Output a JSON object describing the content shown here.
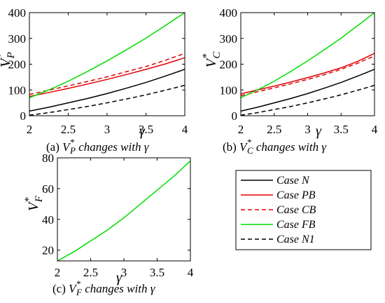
{
  "chart_data": [
    {
      "type": "line",
      "panel": "a",
      "caption_prefix": "(a) ",
      "caption_var": "V",
      "caption_sub": "P",
      "caption_sup": "*",
      "caption_rest": " changes with γ",
      "ylabel_main": "V",
      "ylabel_sub": "P",
      "ylabel_sup": "*",
      "xlabel": "γ",
      "xlim": [
        2,
        4
      ],
      "ylim": [
        0,
        400
      ],
      "xticks": [
        2,
        2.5,
        3,
        3.5,
        4
      ],
      "xtick_labels": [
        "2",
        "2.5",
        "3",
        "3.5",
        "4"
      ],
      "yticks": [
        0,
        100,
        200,
        300,
        400
      ],
      "ytick_labels": [
        "0",
        "100",
        "200",
        "300",
        "400"
      ],
      "x": [
        2,
        2.25,
        2.5,
        2.75,
        3,
        3.25,
        3.5,
        3.75,
        4
      ],
      "series": [
        {
          "name": "Case N",
          "color": "#000000",
          "dash": "solid",
          "values": [
            18,
            33,
            50,
            67,
            86,
            107,
            129,
            154,
            180
          ]
        },
        {
          "name": "Case PB",
          "color": "#e00000",
          "dash": "solid",
          "values": [
            75,
            90,
            106,
            123,
            141,
            160,
            180,
            201,
            225
          ]
        },
        {
          "name": "Case CB",
          "color": "#e00000",
          "dash": "dashed",
          "values": [
            83,
            99,
            116,
            133,
            151,
            171,
            191,
            215,
            242
          ]
        },
        {
          "name": "Case FB",
          "color": "#00dd00",
          "dash": "solid",
          "values": [
            70,
            100,
            134,
            172,
            213,
            256,
            301,
            350,
            400
          ]
        },
        {
          "name": "Case N1",
          "color": "#000000",
          "dash": "dashed",
          "values": [
            2,
            12,
            24,
            36,
            50,
            65,
            81,
            99,
            118
          ]
        }
      ]
    },
    {
      "type": "line",
      "panel": "b",
      "caption_prefix": "(b) ",
      "caption_var": "V",
      "caption_sub": "C",
      "caption_sup": "*",
      "caption_rest": " changes with γ",
      "ylabel_main": "V",
      "ylabel_sub": "C",
      "ylabel_sup": "*",
      "xlabel": "γ",
      "xlim": [
        2,
        4
      ],
      "ylim": [
        0,
        400
      ],
      "xticks": [
        2,
        2.5,
        3,
        3.5,
        4
      ],
      "xtick_labels": [
        "2",
        "2.5",
        "3",
        "3.5",
        "4"
      ],
      "yticks": [
        0,
        100,
        200,
        300,
        400
      ],
      "ytick_labels": [
        "0",
        "100",
        "200",
        "300",
        "400"
      ],
      "x": [
        2,
        2.25,
        2.5,
        2.75,
        3,
        3.25,
        3.5,
        3.75,
        4
      ],
      "series": [
        {
          "name": "Case N",
          "color": "#000000",
          "dash": "solid",
          "values": [
            18,
            33,
            50,
            67,
            86,
            107,
            129,
            154,
            180
          ]
        },
        {
          "name": "Case PB",
          "color": "#e00000",
          "dash": "solid",
          "values": [
            85,
            100,
            115,
            131,
            148,
            166,
            186,
            211,
            242
          ]
        },
        {
          "name": "Case CB",
          "color": "#e00000",
          "dash": "dashed",
          "values": [
            78,
            93,
            108,
            124,
            141,
            159,
            180,
            204,
            232
          ]
        },
        {
          "name": "Case FB",
          "color": "#00dd00",
          "dash": "solid",
          "values": [
            70,
            100,
            134,
            172,
            213,
            256,
            301,
            350,
            400
          ]
        },
        {
          "name": "Case N1",
          "color": "#000000",
          "dash": "dashed",
          "values": [
            2,
            12,
            24,
            36,
            50,
            65,
            81,
            99,
            118
          ]
        }
      ]
    },
    {
      "type": "line",
      "panel": "c",
      "caption_prefix": "(c) ",
      "caption_var": "V",
      "caption_sub": "F",
      "caption_sup": "*",
      "caption_rest": " changes with γ",
      "ylabel_main": "V",
      "ylabel_sub": "F",
      "ylabel_sup": "*",
      "xlabel": "γ",
      "xlim": [
        2,
        4
      ],
      "ylim": [
        13,
        80
      ],
      "xticks": [
        2,
        2.5,
        3,
        3.5,
        4
      ],
      "xtick_labels": [
        "2",
        "2.5",
        "3",
        "3.5",
        "4"
      ],
      "yticks": [
        20,
        40,
        60,
        80
      ],
      "ytick_labels": [
        "20",
        "40",
        "60",
        "80"
      ],
      "x": [
        2,
        2.25,
        2.5,
        2.75,
        3,
        3.25,
        3.5,
        3.75,
        4
      ],
      "series": [
        {
          "name": "Case FB",
          "color": "#00dd00",
          "dash": "solid",
          "values": [
            13,
            19,
            26,
            33,
            41,
            50,
            59,
            68,
            78
          ]
        }
      ]
    }
  ],
  "legend": {
    "placement": "bottom-right",
    "items": [
      {
        "label": "Case N",
        "color": "#000000",
        "dash": "solid"
      },
      {
        "label": "Case PB",
        "color": "#e00000",
        "dash": "solid"
      },
      {
        "label": "Case CB",
        "color": "#e00000",
        "dash": "dashed"
      },
      {
        "label": "Case FB",
        "color": "#00dd00",
        "dash": "solid"
      },
      {
        "label": "Case N1",
        "color": "#000000",
        "dash": "dashed"
      }
    ]
  }
}
